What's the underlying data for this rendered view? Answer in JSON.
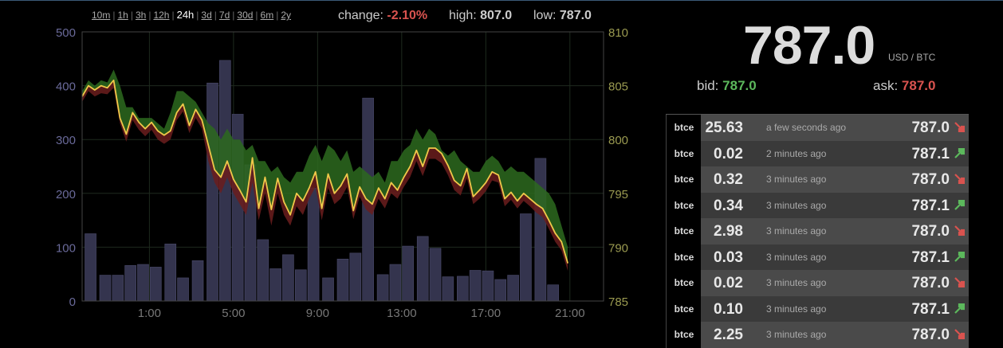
{
  "ranges": [
    {
      "label": "10m",
      "active": false
    },
    {
      "label": "1h",
      "active": false
    },
    {
      "label": "3h",
      "active": false
    },
    {
      "label": "12h",
      "active": false
    },
    {
      "label": "24h",
      "active": true
    },
    {
      "label": "3d",
      "active": false
    },
    {
      "label": "7d",
      "active": false
    },
    {
      "label": "30d",
      "active": false
    },
    {
      "label": "6m",
      "active": false
    },
    {
      "label": "2y",
      "active": false
    }
  ],
  "stats": {
    "change_label": "change:",
    "change_value": "-2.10%",
    "high_label": "high:",
    "high_value": "807.0",
    "low_label": "low:",
    "low_value": "787.0"
  },
  "ticker": {
    "price": "787.0",
    "unit": "USD / BTC",
    "bid_label": "bid:",
    "bid_value": "787.0",
    "ask_label": "ask:",
    "ask_value": "787.0"
  },
  "colors": {
    "bg": "#000000",
    "volume_bar": "#34344e",
    "price_line": "#f0c84a",
    "band_up": "#2d6a1f",
    "band_down": "#6b1d1d",
    "up": "#5cb85c",
    "down": "#d9534f",
    "left_axis": "#6a6a9a",
    "right_axis": "#9a9a50"
  },
  "trades": [
    {
      "exchange": "btce",
      "amount": "25.63",
      "ago": "a few seconds ago",
      "price": "787.0",
      "dir": "down-icon"
    },
    {
      "exchange": "btce",
      "amount": "0.02",
      "ago": "2 minutes ago",
      "price": "787.1",
      "dir": "up-icon"
    },
    {
      "exchange": "btce",
      "amount": "0.32",
      "ago": "3 minutes ago",
      "price": "787.0",
      "dir": "down-icon"
    },
    {
      "exchange": "btce",
      "amount": "0.34",
      "ago": "3 minutes ago",
      "price": "787.1",
      "dir": "up-icon"
    },
    {
      "exchange": "btce",
      "amount": "2.98",
      "ago": "3 minutes ago",
      "price": "787.0",
      "dir": "down-icon"
    },
    {
      "exchange": "btce",
      "amount": "0.03",
      "ago": "3 minutes ago",
      "price": "787.1",
      "dir": "up-icon"
    },
    {
      "exchange": "btce",
      "amount": "0.02",
      "ago": "3 minutes ago",
      "price": "787.0",
      "dir": "down-icon"
    },
    {
      "exchange": "btce",
      "amount": "0.10",
      "ago": "3 minutes ago",
      "price": "787.1",
      "dir": "up-icon"
    },
    {
      "exchange": "btce",
      "amount": "2.25",
      "ago": "3 minutes ago",
      "price": "787.0",
      "dir": "down-icon"
    }
  ],
  "chart_data": {
    "type": "bar+line",
    "x_ticks": [
      "1:00",
      "5:00",
      "9:00",
      "13:00",
      "17:00",
      "21:00"
    ],
    "x_tick_hours": [
      1,
      5,
      9,
      13,
      17,
      21
    ],
    "x_range_hours": [
      -2.2,
      22.6
    ],
    "volume_axis": {
      "ticks": [
        0,
        100,
        200,
        300,
        400,
        500
      ],
      "ylim": [
        0,
        500
      ]
    },
    "price_axis": {
      "ticks": [
        785,
        790,
        795,
        800,
        805,
        810
      ],
      "ylim": [
        785,
        810
      ]
    },
    "volume": {
      "x": [
        -1.8,
        -1.1,
        -0.5,
        0.1,
        0.7,
        1.3,
        2.0,
        2.6,
        3.3,
        4.0,
        4.6,
        5.2,
        5.8,
        6.4,
        7.0,
        7.6,
        8.2,
        8.8,
        9.5,
        10.2,
        10.8,
        11.4,
        12.1,
        12.7,
        13.3,
        14.0,
        14.6,
        15.2,
        15.9,
        16.5,
        17.1,
        17.7,
        18.3,
        18.9,
        19.6,
        20.2,
        20.8,
        21.5
      ],
      "values": [
        125,
        48,
        48,
        66,
        68,
        63,
        106,
        43,
        75,
        405,
        447,
        347,
        253,
        114,
        60,
        86,
        58,
        210,
        43,
        78,
        89,
        377,
        49,
        68,
        102,
        120,
        98,
        45,
        46,
        57,
        56,
        40,
        48,
        162,
        265,
        30,
        0,
        0
      ]
    },
    "price_line": {
      "x": [
        -2.2,
        -1.9,
        -1.6,
        -1.3,
        -1.0,
        -0.7,
        -0.4,
        -0.1,
        0.2,
        0.5,
        0.8,
        1.1,
        1.4,
        1.7,
        2.0,
        2.3,
        2.6,
        2.9,
        3.2,
        3.5,
        3.8,
        4.1,
        4.4,
        4.7,
        5.0,
        5.3,
        5.6,
        5.9,
        6.2,
        6.5,
        6.8,
        7.1,
        7.4,
        7.7,
        8.0,
        8.3,
        8.6,
        8.9,
        9.2,
        9.5,
        9.8,
        10.1,
        10.4,
        10.7,
        11.0,
        11.3,
        11.6,
        11.9,
        12.2,
        12.5,
        12.8,
        13.1,
        13.4,
        13.7,
        14.0,
        14.3,
        14.6,
        14.9,
        15.2,
        15.5,
        15.8,
        16.1,
        16.4,
        16.7,
        17.0,
        17.3,
        17.6,
        17.9,
        18.2,
        18.5,
        18.8,
        19.1,
        19.4,
        19.7,
        20.0,
        20.3,
        20.6,
        20.9
      ],
      "values": [
        804,
        805,
        804.6,
        805,
        804.8,
        805.5,
        802,
        800.5,
        802.5,
        801.6,
        801,
        801.6,
        800.8,
        800.4,
        800.8,
        802.5,
        803.3,
        801.3,
        802.8,
        801.8,
        799.5,
        797.2,
        796.5,
        798,
        796.3,
        795.3,
        794.2,
        798.3,
        793.6,
        796.5,
        793.5,
        796.4,
        794.2,
        793,
        795,
        794.3,
        795.5,
        797,
        793.6,
        796.8,
        795,
        795.7,
        796.8,
        793.4,
        795.6,
        794.5,
        794,
        795.5,
        794.5,
        796,
        795.3,
        796.5,
        797.5,
        799,
        797.5,
        799.2,
        799.2,
        798.7,
        797.6,
        796.2,
        795.7,
        797.3,
        794.7,
        795.3,
        796,
        797,
        796.7,
        794.5,
        795.1,
        794.3,
        795,
        794.5,
        794,
        793.6,
        792.5,
        791.3,
        790.5,
        788.5
      ]
    },
    "band_high": [
      804.5,
      805.5,
      805,
      805.5,
      805.3,
      806.5,
      805,
      803,
      803,
      802,
      802,
      802,
      801.5,
      801,
      802.5,
      804.5,
      804.5,
      804,
      803.5,
      802.5,
      801.5,
      801,
      800,
      801,
      800,
      800,
      799,
      799.5,
      798,
      798,
      797,
      797.5,
      796.5,
      796,
      797,
      797,
      798.5,
      799.5,
      798,
      799.5,
      799,
      798,
      799,
      797,
      797.5,
      797,
      796.5,
      797,
      796,
      798,
      798,
      799,
      799.5,
      801,
      800,
      801,
      800.5,
      799,
      798.5,
      799,
      798,
      797.5,
      797,
      797,
      798,
      798.5,
      798,
      797,
      797.5,
      797,
      797,
      796.5,
      796,
      795.5,
      795,
      794,
      792,
      790
    ],
    "band_low": [
      803.5,
      804.5,
      804,
      804.3,
      804.2,
      804.8,
      801.5,
      799.8,
      801.8,
      800.9,
      800.3,
      800.9,
      800,
      799.6,
      800,
      801.8,
      802.6,
      800.6,
      802,
      801,
      798,
      796,
      795,
      796.5,
      795,
      794,
      793,
      796,
      792.5,
      795,
      792,
      795,
      793,
      792,
      793.8,
      793,
      794.5,
      795.6,
      792.5,
      795.5,
      794,
      794.5,
      795.6,
      792.6,
      794.7,
      793.5,
      793,
      794.5,
      793.6,
      795,
      794.5,
      795.6,
      796.5,
      798,
      796.6,
      798.2,
      798.2,
      797.8,
      796.7,
      795.3,
      794.8,
      796.4,
      794,
      794.5,
      795.2,
      796.2,
      796,
      793.8,
      794.4,
      793.6,
      794.3,
      793.8,
      793.2,
      792.8,
      791.7,
      790.5,
      789.7,
      787.8
    ]
  }
}
